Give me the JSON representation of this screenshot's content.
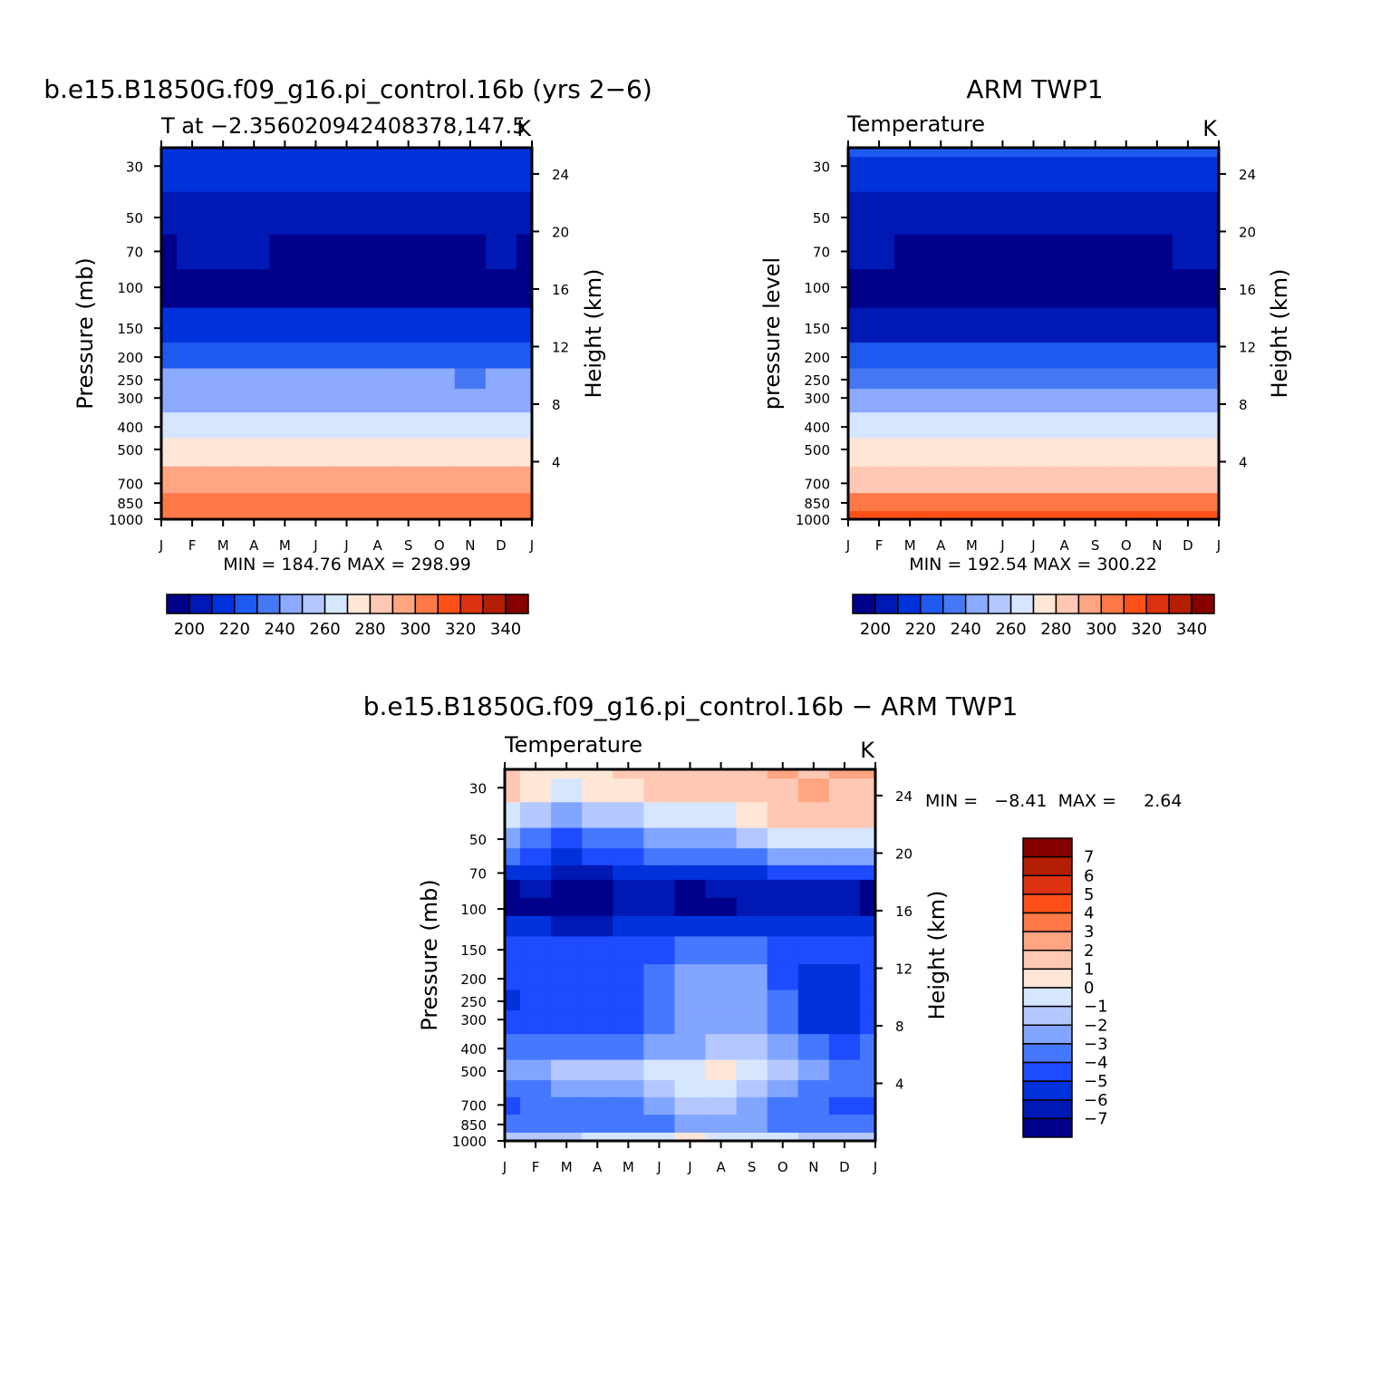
{
  "figure": {
    "diff_title": "b.e15.B1850G.f09_g16.pi_control.16b − ARM TWP1"
  },
  "common": {
    "months": [
      "J",
      "F",
      "M",
      "A",
      "M",
      "J",
      "J",
      "A",
      "S",
      "O",
      "N",
      "D",
      "J"
    ],
    "pressure_ticks": [
      "30",
      "50",
      "70",
      "100",
      "150",
      "200",
      "250",
      "300",
      "400",
      "500",
      "700",
      "850",
      "1000"
    ],
    "height_ticks": [
      "24",
      "20",
      "16",
      "12",
      "8",
      "4"
    ],
    "temp_colorbar_labels": [
      "200",
      "220",
      "240",
      "260",
      "280",
      "300",
      "320",
      "340"
    ],
    "temp_colors": [
      "#00008a",
      "#0018b4",
      "#0032dc",
      "#1e5af0",
      "#4678f5",
      "#8caaff",
      "#b4c8ff",
      "#d7e6ff",
      "#ffe6d7",
      "#ffc8b4",
      "#ffa582",
      "#ff7846",
      "#ff5019",
      "#dc320f",
      "#b41e05",
      "#870000"
    ],
    "diff_colors": [
      "#00008a",
      "#0018b4",
      "#0032dc",
      "#1e4bff",
      "#4678ff",
      "#82a5ff",
      "#b4c8ff",
      "#d7e6ff",
      "#ffe6d7",
      "#ffc8b4",
      "#ffa582",
      "#ff7846",
      "#ff5019",
      "#dc320f",
      "#b41e05",
      "#870000"
    ],
    "diff_colorbar_labels": [
      "7",
      "6",
      "5",
      "4",
      "3",
      "2",
      "1",
      "0",
      "−1",
      "−2",
      "−3",
      "−4",
      "−5",
      "−6",
      "−7"
    ]
  },
  "panels": {
    "p1": {
      "title": "b.e15.B1850G.f09_g16.pi_control.16b (yrs 2−6)",
      "left_text": "T at −2.356020942408378,147.5",
      "right_text": "K",
      "ylabel": "Pressure (mb)",
      "y2label": "Height (km)",
      "minmax": "MIN =  184.76  MAX =  298.99"
    },
    "p2": {
      "title": "ARM TWP1",
      "left_text": "Temperature",
      "right_text": "K",
      "ylabel": "pressure level",
      "y2label": "Height (km)",
      "minmax": "MIN =  192.54  MAX =  300.22"
    },
    "p3": {
      "left_text": "Temperature",
      "right_text": "K",
      "ylabel": "Pressure (mb)",
      "y2label": "Height (km)",
      "minmax": "MIN =   −8.41  MAX =     2.64"
    }
  },
  "chart_data": [
    {
      "type": "heatmap",
      "title": "b.e15.B1850G.f09_g16.pi_control.16b (yrs 2−6)",
      "subtitle": "T at −2.356020942408378,147.5",
      "units": "K",
      "xlabel": "",
      "ylabel": "Pressure (mb)",
      "y2label": "Height (km)",
      "x": [
        "J",
        "F",
        "M",
        "A",
        "M",
        "J",
        "J",
        "A",
        "S",
        "O",
        "N",
        "D",
        "J"
      ],
      "pressure_levels": [
        25,
        30,
        50,
        70,
        100,
        150,
        200,
        250,
        300,
        400,
        500,
        700,
        850,
        1000
      ],
      "values": [
        [
          206,
          206,
          206,
          206,
          206,
          206,
          206,
          206,
          206,
          206,
          206,
          206,
          206
        ],
        [
          204,
          205,
          206,
          205,
          204,
          203,
          203,
          203,
          203,
          204,
          204,
          205,
          204
        ],
        [
          194,
          196,
          197,
          195,
          193,
          191,
          190,
          190,
          191,
          192,
          193,
          194,
          194
        ],
        [
          189,
          190,
          191,
          190,
          189,
          188,
          188,
          188,
          188,
          189,
          189,
          190,
          189
        ],
        [
          186,
          186,
          187,
          187,
          186,
          186,
          186,
          186,
          186,
          186,
          186,
          187,
          186
        ],
        [
          201,
          201,
          201,
          201,
          201,
          201,
          201,
          201,
          201,
          201,
          201,
          201,
          201
        ],
        [
          219,
          219,
          219,
          219,
          218,
          218,
          218,
          218,
          218,
          218,
          217,
          218,
          219
        ],
        [
          231,
          231,
          231,
          231,
          230,
          230,
          230,
          230,
          230,
          230,
          229,
          230,
          231
        ],
        [
          239,
          239,
          239,
          239,
          238,
          238,
          238,
          238,
          238,
          238,
          237,
          238,
          239
        ],
        [
          255,
          255,
          255,
          255,
          254,
          254,
          254,
          254,
          254,
          254,
          253,
          254,
          255
        ],
        [
          266,
          266,
          266,
          266,
          266,
          266,
          266,
          266,
          266,
          266,
          266,
          266,
          266
        ],
        [
          283,
          283,
          283,
          283,
          283,
          283,
          283,
          283,
          283,
          283,
          283,
          283,
          283
        ],
        [
          291,
          291,
          291,
          291,
          291,
          291,
          291,
          291,
          291,
          291,
          291,
          291,
          291
        ],
        [
          298,
          298,
          298,
          298,
          298,
          298,
          298,
          298,
          298,
          298,
          298,
          298,
          298
        ]
      ],
      "levels": [
        190,
        200,
        210,
        220,
        230,
        240,
        250,
        260,
        270,
        280,
        290,
        300,
        310,
        320,
        330
      ],
      "colorbar_ticks": [
        200,
        220,
        240,
        260,
        280,
        300,
        320,
        340
      ],
      "min": 184.76,
      "max": 298.99
    },
    {
      "type": "heatmap",
      "title": "ARM TWP1",
      "subtitle": "Temperature",
      "units": "K",
      "xlabel": "",
      "ylabel": "pressure level",
      "y2label": "Height (km)",
      "x": [
        "J",
        "F",
        "M",
        "A",
        "M",
        "J",
        "J",
        "A",
        "S",
        "O",
        "N",
        "D",
        "J"
      ],
      "pressure_levels": [
        25,
        30,
        50,
        70,
        100,
        150,
        200,
        250,
        300,
        400,
        500,
        700,
        850,
        1000
      ],
      "values": [
        [
          212,
          212,
          212,
          212,
          212,
          212,
          212,
          212,
          212,
          212,
          212,
          212,
          212
        ],
        [
          205,
          204,
          204,
          203,
          203,
          203,
          203,
          203,
          203,
          204,
          204,
          205,
          205
        ],
        [
          196,
          196,
          196,
          195,
          195,
          194,
          194,
          194,
          194,
          195,
          196,
          196,
          196
        ],
        [
          190,
          190,
          189,
          189,
          189,
          188,
          188,
          188,
          188,
          188,
          189,
          190,
          190
        ],
        [
          186,
          186,
          186,
          186,
          186,
          186,
          186,
          186,
          186,
          186,
          186,
          186,
          186
        ],
        [
          196,
          196,
          196,
          196,
          196,
          196,
          196,
          196,
          196,
          196,
          196,
          196,
          196
        ],
        [
          215,
          215,
          215,
          215,
          215,
          215,
          215,
          215,
          215,
          215,
          215,
          215,
          215
        ],
        [
          225,
          225,
          224,
          224,
          224,
          224,
          224,
          224,
          224,
          224,
          224,
          225,
          225
        ],
        [
          236,
          236,
          236,
          235,
          235,
          235,
          235,
          235,
          235,
          235,
          236,
          236,
          236
        ],
        [
          254,
          254,
          254,
          253,
          253,
          253,
          253,
          253,
          253,
          253,
          254,
          254,
          254
        ],
        [
          266,
          266,
          266,
          266,
          266,
          266,
          266,
          266,
          266,
          266,
          266,
          266,
          266
        ],
        [
          279,
          279,
          279,
          279,
          279,
          279,
          279,
          279,
          279,
          279,
          279,
          279,
          279
        ],
        [
          290,
          290,
          290,
          290,
          290,
          290,
          290,
          290,
          290,
          290,
          290,
          290,
          290
        ],
        [
          301,
          301,
          301,
          301,
          301,
          301,
          301,
          301,
          301,
          301,
          301,
          301,
          301
        ]
      ],
      "levels": [
        190,
        200,
        210,
        220,
        230,
        240,
        250,
        260,
        270,
        280,
        290,
        300,
        310,
        320,
        330
      ],
      "colorbar_ticks": [
        200,
        220,
        240,
        260,
        280,
        300,
        320,
        340
      ],
      "min": 192.54,
      "max": 300.22
    },
    {
      "type": "heatmap",
      "title": "b.e15.B1850G.f09_g16.pi_control.16b − ARM TWP1",
      "subtitle": "Temperature",
      "units": "K",
      "xlabel": "",
      "ylabel": "Pressure (mb)",
      "y2label": "Height (km)",
      "x": [
        "J",
        "F",
        "M",
        "A",
        "M",
        "J",
        "J",
        "A",
        "S",
        "O",
        "N",
        "D",
        "J"
      ],
      "pressure_levels": [
        25,
        30,
        40,
        50,
        60,
        70,
        80,
        100,
        115,
        150,
        200,
        250,
        300,
        400,
        500,
        600,
        700,
        850,
        1000
      ],
      "values": [
        [
          1.5,
          0.5,
          0.5,
          0.5,
          1.5,
          1.5,
          1.5,
          1.5,
          1.5,
          2.5,
          1.5,
          2.5,
          2.5
        ],
        [
          1.5,
          0.5,
          -0.5,
          0.5,
          0.5,
          1.5,
          1.5,
          1.5,
          1.5,
          1.5,
          2.5,
          1.5,
          1.5
        ],
        [
          -0.5,
          -1.5,
          -2.5,
          -1.5,
          -1.5,
          -0.5,
          -0.5,
          -0.5,
          0.5,
          1.5,
          1.5,
          1.5,
          1.5
        ],
        [
          -2.5,
          -3.5,
          -4.5,
          -3.5,
          -3.5,
          -2.5,
          -2.5,
          -2.5,
          -1.5,
          -0.5,
          -0.5,
          -0.5,
          -0.5
        ],
        [
          -3.5,
          -4.5,
          -5.5,
          -4.5,
          -4.5,
          -3.5,
          -3.5,
          -3.5,
          -3.5,
          -2.5,
          -2.5,
          -2.5,
          -2.5
        ],
        [
          -5.5,
          -5.5,
          -6.5,
          -6.5,
          -5.5,
          -5.5,
          -5.5,
          -5.5,
          -5.5,
          -4.5,
          -4.5,
          -4.5,
          -4.5
        ],
        [
          -7.5,
          -6.5,
          -7.5,
          -7.5,
          -6.5,
          -6.5,
          -7.5,
          -6.5,
          -6.5,
          -6.5,
          -6.5,
          -6.5,
          -7.5
        ],
        [
          -7.5,
          -7.5,
          -7.5,
          -7.5,
          -6.5,
          -6.5,
          -7.5,
          -7.5,
          -6.5,
          -6.5,
          -6.5,
          -6.5,
          -7.5
        ],
        [
          -5.5,
          -5.5,
          -6.5,
          -6.5,
          -5.5,
          -5.5,
          -5.5,
          -5.5,
          -5.5,
          -5.5,
          -5.5,
          -5.5,
          -5.5
        ],
        [
          -4.5,
          -4.5,
          -4.5,
          -4.5,
          -4.5,
          -4.5,
          -3.5,
          -3.5,
          -3.5,
          -4.5,
          -4.5,
          -4.5,
          -4.5
        ],
        [
          -4.5,
          -4.5,
          -4.5,
          -4.5,
          -4.5,
          -3.5,
          -2.5,
          -2.5,
          -2.5,
          -4.5,
          -5.5,
          -5.5,
          -4.5
        ],
        [
          -5.5,
          -4.5,
          -4.5,
          -4.5,
          -4.5,
          -3.5,
          -2.5,
          -2.5,
          -2.5,
          -3.5,
          -5.5,
          -5.5,
          -4.5
        ],
        [
          -4.5,
          -4.5,
          -4.5,
          -4.5,
          -4.5,
          -3.5,
          -2.5,
          -2.5,
          -2.5,
          -3.5,
          -5.5,
          -5.5,
          -4.5
        ],
        [
          -3.5,
          -3.5,
          -3.5,
          -3.5,
          -3.5,
          -2.5,
          -2.5,
          -1.5,
          -1.5,
          -2.5,
          -3.5,
          -4.5,
          -3.5
        ],
        [
          -2.5,
          -2.5,
          -1.5,
          -1.5,
          -1.5,
          -0.5,
          -0.5,
          0.5,
          -0.5,
          -1.5,
          -2.5,
          -3.5,
          -3.5
        ],
        [
          -3.5,
          -3.5,
          -2.5,
          -2.5,
          -2.5,
          -1.5,
          -0.5,
          -0.5,
          -1.5,
          -2.5,
          -3.5,
          -3.5,
          -3.5
        ],
        [
          -4.5,
          -3.5,
          -3.5,
          -3.5,
          -3.5,
          -2.5,
          -1.5,
          -1.5,
          -2.5,
          -3.5,
          -3.5,
          -4.5,
          -4.5
        ],
        [
          -3.5,
          -3.5,
          -3.5,
          -3.5,
          -3.5,
          -3.5,
          -2.5,
          -2.5,
          -2.5,
          -3.5,
          -3.5,
          -3.5,
          -3.5
        ],
        [
          -1.5,
          -1.5,
          -1.5,
          -0.5,
          -0.5,
          -0.5,
          0.5,
          -0.5,
          -0.5,
          -0.5,
          -1.5,
          -1.5,
          -1.5
        ]
      ],
      "levels": [
        -7,
        -6,
        -5,
        -4,
        -3,
        -2,
        -1,
        0,
        1,
        2,
        3,
        4,
        5,
        6,
        7
      ],
      "colorbar_ticks": [
        7,
        6,
        5,
        4,
        3,
        2,
        1,
        0,
        -1,
        -2,
        -3,
        -4,
        -5,
        -6,
        -7
      ],
      "min": -8.41,
      "max": 2.64
    }
  ]
}
